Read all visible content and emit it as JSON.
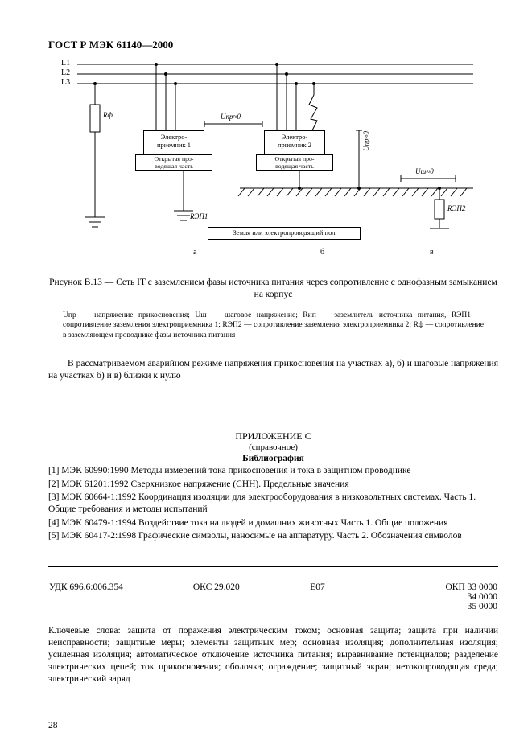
{
  "header": "ГОСТ Р МЭК 61140—2000",
  "diagram": {
    "lines": {
      "L1": "L1",
      "L2": "L2",
      "L3": "L3"
    },
    "Rph": "Rф",
    "receiver1": "Электро-\nприемник 1",
    "receiver2": "Электро-\nприемник 2",
    "open_part": "Открытая про-\nводящая часть",
    "U_pr0": "Uпр≈0",
    "U_pr0_v": "Uпр≈0",
    "U_sh0": "Uш≈0",
    "R_ep1": "RЭП1",
    "R_ep2": "RЭП2",
    "ground_label": "Земля или электропроводящий пол",
    "sections": {
      "a": "а",
      "b": "б",
      "v": "в"
    }
  },
  "caption": "Рисунок В.13 — Сеть IT с заземлением фазы источника питания через сопротивление с однофазным замыканием на корпус",
  "legend": "Uпр — напряжение прикосновения; Uш — шаговое напряжение; Rип — заземлитель источника питания, RЭП1 — сопротивление заземления электроприемника 1; RЭП2 — сопротивление заземления электроприемника 2; Rф — сопротивление в заземляющем проводнике фазы источника питания",
  "paragraph": "В рассматриваемом аварийном режиме напряжения прикосновения на участках а), б) и шаговые напряжения на участках б) и в) близки к нулю",
  "appendix": {
    "title": "ПРИЛОЖЕНИЕ С",
    "subtitle": "(справочное)",
    "bib_head": "Библиография",
    "items": [
      "[1] МЭК 60990:1990 Методы измерений тока прикосновения и тока в защитном проводнике",
      "[2] МЭК 61201:1992 Сверхнизкое напряжение (СНН). Предельные значения",
      "[3] МЭК 60664-1:1992 Координация изоляции для электрооборудования в низковольтных системах. Часть 1. Общие требования и методы испытаний",
      "[4] МЭК 60479-1:1994 Воздействие тока на людей и домашних животных Часть 1. Общие положения",
      "[5] МЭК 60417-2:1998 Графические символы, наносимые на аппаратуру. Часть 2. Обозначения символов"
    ]
  },
  "codes": {
    "udk": "УДК 696.6:006.354",
    "oks": "ОКС 29.020",
    "e": "Е07",
    "okp1": "ОКП 33 0000",
    "okp2": "34 0000",
    "okp3": "35 0000"
  },
  "keywords": "Ключевые слова: защита от поражения электрическим током; основная защита; защита при наличии неисправности; защитные меры; элементы защитных мер; основная изоляция; дополнительная изоляция; усиленная изоляция; автоматическое отключение источника питания; выравнивание потенциалов; разделение электрических цепей; ток прикосновения; оболочка; ограждение; защитный экран; нетокопроводящая среда; электрический заряд",
  "page_number": "28",
  "style": {
    "page_bg": "#ffffff",
    "text_color": "#000000",
    "font_family": "Times New Roman",
    "diagram_border": "#000000",
    "hatch_angle": 45
  }
}
